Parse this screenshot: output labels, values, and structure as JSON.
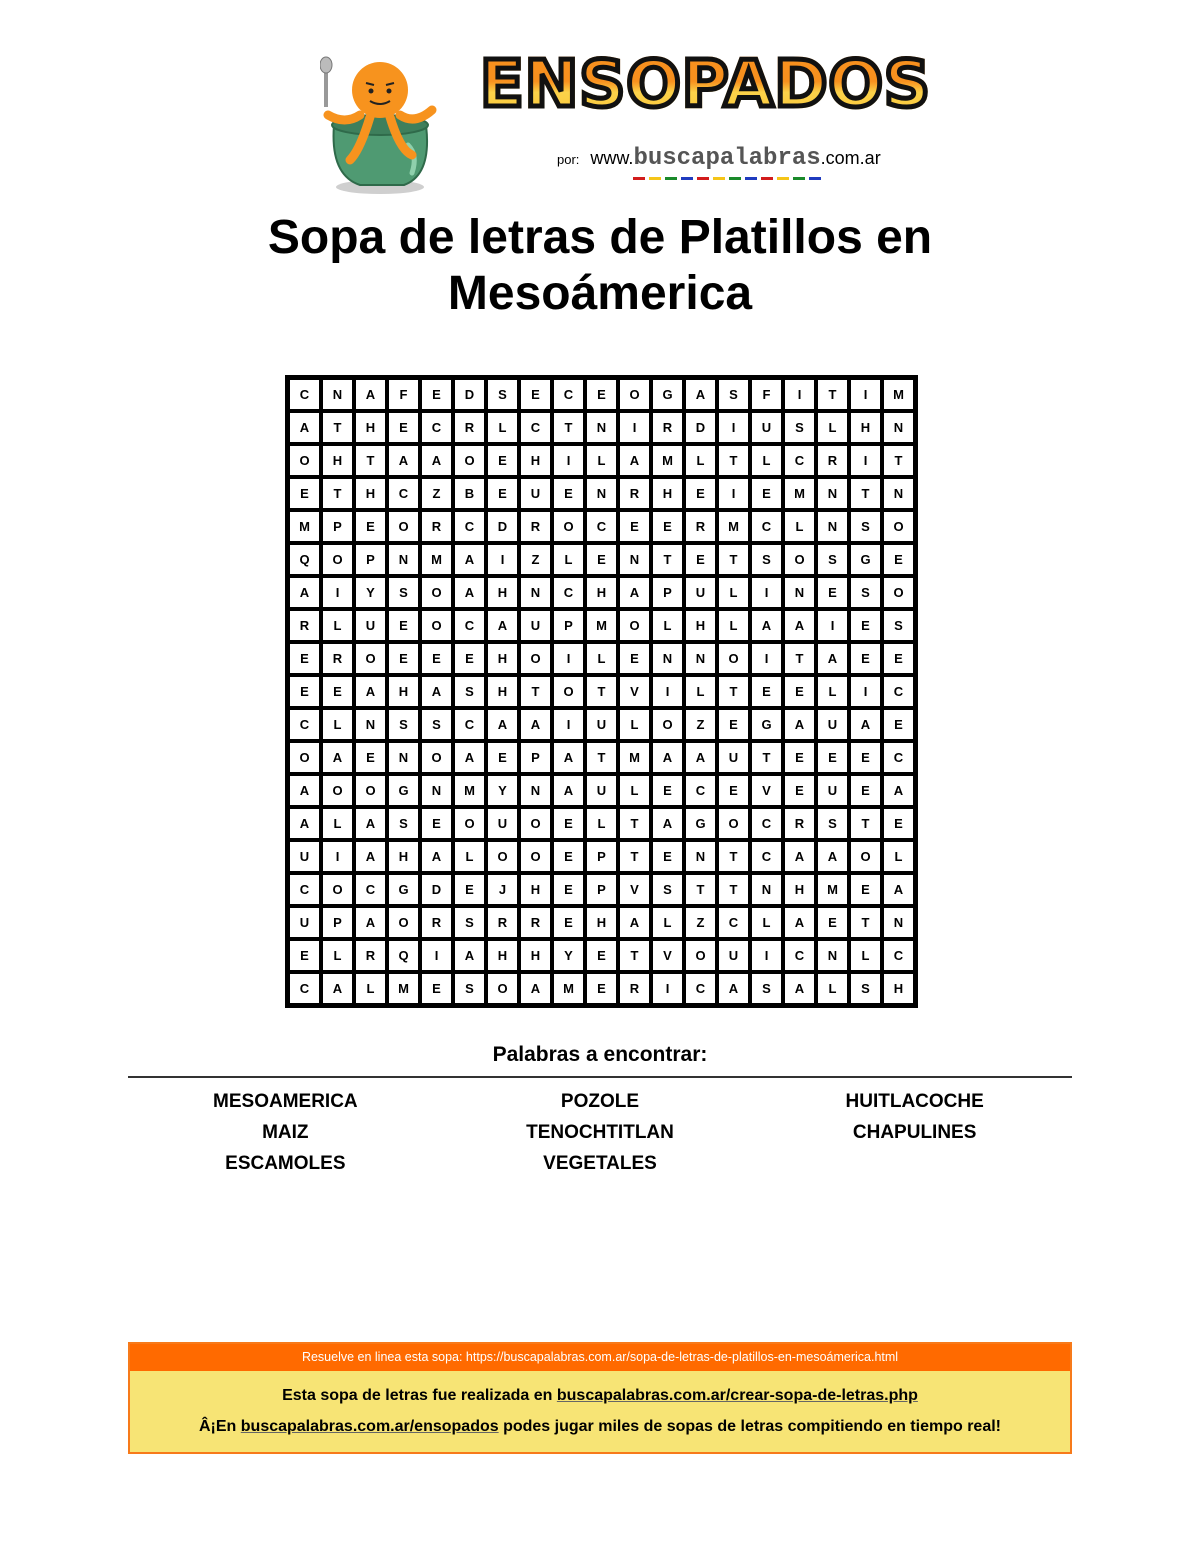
{
  "header": {
    "logo_text": "ENSOPADOS",
    "byline_prefix": "por:",
    "byline_www": "www.",
    "byline_site": "buscapalabras",
    "byline_tld": ".com.ar"
  },
  "title": "Sopa de letras de Platillos en Mesoámerica",
  "grid": [
    [
      "C",
      "N",
      "A",
      "F",
      "E",
      "D",
      "S",
      "E",
      "C",
      "E",
      "O",
      "G",
      "A",
      "S",
      "F",
      "I",
      "T",
      "I",
      "M"
    ],
    [
      "A",
      "T",
      "H",
      "E",
      "C",
      "R",
      "L",
      "C",
      "T",
      "N",
      "I",
      "R",
      "D",
      "I",
      "U",
      "S",
      "L",
      "H",
      "N"
    ],
    [
      "O",
      "H",
      "T",
      "A",
      "A",
      "O",
      "E",
      "H",
      "I",
      "L",
      "A",
      "M",
      "L",
      "T",
      "L",
      "C",
      "R",
      "I",
      "T"
    ],
    [
      "E",
      "T",
      "H",
      "C",
      "Z",
      "B",
      "E",
      "U",
      "E",
      "N",
      "R",
      "H",
      "E",
      "I",
      "E",
      "M",
      "N",
      "T",
      "N"
    ],
    [
      "M",
      "P",
      "E",
      "O",
      "R",
      "C",
      "D",
      "R",
      "O",
      "C",
      "E",
      "E",
      "R",
      "M",
      "C",
      "L",
      "N",
      "S",
      "O"
    ],
    [
      "Q",
      "O",
      "P",
      "N",
      "M",
      "A",
      "I",
      "Z",
      "L",
      "E",
      "N",
      "T",
      "E",
      "T",
      "S",
      "O",
      "S",
      "G",
      "E"
    ],
    [
      "A",
      "I",
      "Y",
      "S",
      "O",
      "A",
      "H",
      "N",
      "C",
      "H",
      "A",
      "P",
      "U",
      "L",
      "I",
      "N",
      "E",
      "S",
      "O"
    ],
    [
      "R",
      "L",
      "U",
      "E",
      "O",
      "C",
      "A",
      "U",
      "P",
      "M",
      "O",
      "L",
      "H",
      "L",
      "A",
      "A",
      "I",
      "E",
      "S"
    ],
    [
      "E",
      "R",
      "O",
      "E",
      "E",
      "E",
      "H",
      "O",
      "I",
      "L",
      "E",
      "N",
      "N",
      "O",
      "I",
      "T",
      "A",
      "E",
      "E"
    ],
    [
      "E",
      "E",
      "A",
      "H",
      "A",
      "S",
      "H",
      "T",
      "O",
      "T",
      "V",
      "I",
      "L",
      "T",
      "E",
      "E",
      "L",
      "I",
      "C"
    ],
    [
      "C",
      "L",
      "N",
      "S",
      "S",
      "C",
      "A",
      "A",
      "I",
      "U",
      "L",
      "O",
      "Z",
      "E",
      "G",
      "A",
      "U",
      "A",
      "E"
    ],
    [
      "O",
      "A",
      "E",
      "N",
      "O",
      "A",
      "E",
      "P",
      "A",
      "T",
      "M",
      "A",
      "A",
      "U",
      "T",
      "E",
      "E",
      "E",
      "C"
    ],
    [
      "A",
      "O",
      "O",
      "G",
      "N",
      "M",
      "Y",
      "N",
      "A",
      "U",
      "L",
      "E",
      "C",
      "E",
      "V",
      "E",
      "U",
      "E",
      "A"
    ],
    [
      "A",
      "L",
      "A",
      "S",
      "E",
      "O",
      "U",
      "O",
      "E",
      "L",
      "T",
      "A",
      "G",
      "O",
      "C",
      "R",
      "S",
      "T",
      "E"
    ],
    [
      "U",
      "I",
      "A",
      "H",
      "A",
      "L",
      "O",
      "O",
      "E",
      "P",
      "T",
      "E",
      "N",
      "T",
      "C",
      "A",
      "A",
      "O",
      "L"
    ],
    [
      "C",
      "O",
      "C",
      "G",
      "D",
      "E",
      "J",
      "H",
      "E",
      "P",
      "V",
      "S",
      "T",
      "T",
      "N",
      "H",
      "M",
      "E",
      "A"
    ],
    [
      "U",
      "P",
      "A",
      "O",
      "R",
      "S",
      "R",
      "R",
      "E",
      "H",
      "A",
      "L",
      "Z",
      "C",
      "L",
      "A",
      "E",
      "T",
      "N"
    ],
    [
      "E",
      "L",
      "R",
      "Q",
      "I",
      "A",
      "H",
      "H",
      "Y",
      "E",
      "T",
      "V",
      "O",
      "U",
      "I",
      "C",
      "N",
      "L",
      "C"
    ],
    [
      "C",
      "A",
      "L",
      "M",
      "E",
      "S",
      "O",
      "A",
      "M",
      "E",
      "R",
      "I",
      "C",
      "A",
      "S",
      "A",
      "L",
      "S",
      "H"
    ]
  ],
  "words_section": {
    "title": "Palabras a encontrar:",
    "words": [
      "MESOAMERICA",
      "POZOLE",
      "HUITLACOCHE",
      "MAIZ",
      "TENOCHTITLAN",
      "CHAPULINES",
      "ESCAMOLES",
      "VEGETALES"
    ]
  },
  "footer": {
    "online_text": "Resuelve en linea esta sopa: https://buscapalabras.com.ar/sopa-de-letras-de-platillos-en-mesoámerica.html",
    "line1_prefix": "Esta sopa de letras fue realizada en ",
    "line1_link": "buscapalabras.com.ar/crear-sopa-de-letras.php",
    "line2_prefix": "Â¡En ",
    "line2_link": "buscapalabras.com.ar/ensopados",
    "line2_suffix": " podes jugar miles de sopas de letras compitiendo en tiempo real!"
  },
  "colors": {
    "footer_orange": "#ff6a00",
    "footer_yellow": "#f7e475",
    "logo_orange": "#f7901e",
    "pot_green": "#4f9a72"
  }
}
